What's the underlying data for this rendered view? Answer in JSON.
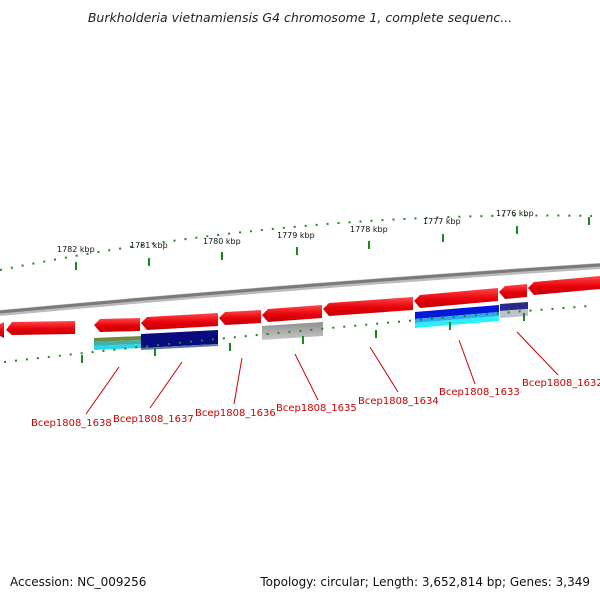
{
  "title": "Burkholderia vietnamiensis G4 chromosome 1, complete sequenc...",
  "ruler": {
    "ticks": [
      "1782 kbp",
      "1781 kbp",
      "1780 kbp",
      "1779 kbp",
      "1778 kbp",
      "1777 kbp",
      "1776 kbp"
    ]
  },
  "genes": [
    "Bcep1808_1638",
    "Bcep1808_1637",
    "Bcep1808_1636",
    "Bcep1808_1635",
    "Bcep1808_1634",
    "Bcep1808_1633",
    "Bcep1808_1632"
  ],
  "footer": {
    "accession": "Accession: NC_009256",
    "stats": "Topology: circular; Length: 3,652,814 bp; Genes: 3,349"
  },
  "colors": {
    "gene_arrow": "#e8000a",
    "backbone": "#8a8a8a",
    "ruler": "#1a8a1a",
    "gene_label": "#cc0000"
  }
}
